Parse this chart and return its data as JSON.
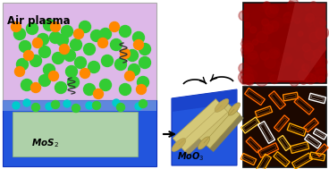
{
  "fig_width": 3.68,
  "fig_height": 1.89,
  "dpi": 100,
  "bg_color": "#ffffff",
  "title_text": "Air plasma",
  "title_fontsize": 8.5,
  "title_fontweight": "bold",
  "mos2_label": "MoS$_2$",
  "moo3_label": "MoO$_3$",
  "green_color": "#33cc33",
  "orange_color": "#ff8800",
  "cyan_color": "#00cccc",
  "plasma_color": "#ddb8e8",
  "substrate_color": "#2255dd",
  "mos2_color": "#c8e8a0",
  "scroll_color": "#d4c878",
  "scroll_shadow": "#9b9060",
  "photo1_bg": "#8b0000",
  "photo2_bg": "#1c0800",
  "scroll_edge": "#b0a055"
}
